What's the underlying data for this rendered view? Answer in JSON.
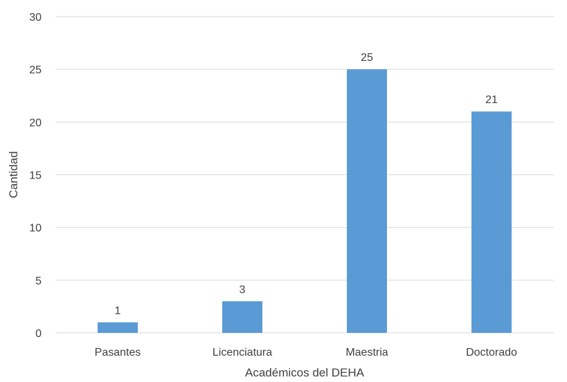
{
  "chart_data": {
    "type": "bar",
    "title": "",
    "xlabel": "Académicos del DEHA",
    "ylabel": "Cantidad",
    "categories": [
      "Pasantes",
      "Licenciatura",
      "Maestria",
      "Doctorado"
    ],
    "values": [
      1,
      3,
      25,
      21
    ],
    "ylim": [
      0,
      30
    ],
    "yticks": [
      0,
      5,
      10,
      15,
      20,
      25,
      30
    ],
    "grid": true,
    "legend": "none",
    "bar_color": "#5B9BD5",
    "grid_color": "#D9D9D9",
    "text_color": "#404040"
  }
}
